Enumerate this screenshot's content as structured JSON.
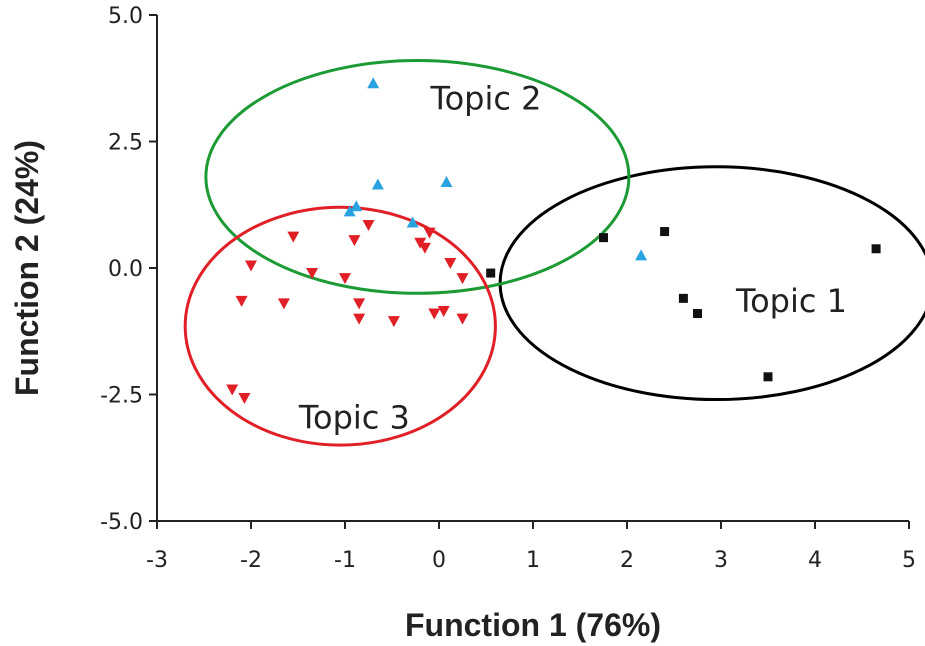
{
  "chart_data": {
    "type": "scatter",
    "xlabel": "Function 1 (76%)",
    "ylabel": "Function 2 (24%)",
    "xlim": [
      -3,
      5
    ],
    "ylim": [
      -5,
      5
    ],
    "xticks": [
      "-3",
      "-2",
      "-1",
      "0",
      "1",
      "2",
      "3",
      "4",
      "5"
    ],
    "yticks": [
      "-5.0",
      "-2.5",
      "0.0",
      "2.5",
      "5.0"
    ],
    "grid": false,
    "series": [
      {
        "name": "Topic 1",
        "marker": "square",
        "color": "#111111",
        "points": [
          [
            0.55,
            -0.1
          ],
          [
            1.75,
            0.6
          ],
          [
            2.4,
            0.72
          ],
          [
            2.6,
            -0.6
          ],
          [
            2.75,
            -0.9
          ],
          [
            3.5,
            -2.15
          ],
          [
            4.65,
            0.38
          ]
        ],
        "ellipse": {
          "center": [
            2.95,
            -0.3
          ],
          "rx": 2.3,
          "ry": 2.3,
          "color": "#000000"
        }
      },
      {
        "name": "Topic 2",
        "marker": "triangle-up",
        "color": "#29a3e0",
        "points": [
          [
            -0.7,
            3.65
          ],
          [
            -0.65,
            1.65
          ],
          [
            0.08,
            1.7
          ],
          [
            -0.95,
            1.12
          ],
          [
            -0.88,
            1.22
          ],
          [
            -0.28,
            0.9
          ],
          [
            2.15,
            0.25
          ]
        ],
        "ellipse": {
          "center": [
            -0.23,
            1.8
          ],
          "rx": 2.25,
          "ry": 2.3,
          "color": "#1c9a34"
        }
      },
      {
        "name": "Topic 3",
        "marker": "triangle-down",
        "color": "#e01f26",
        "points": [
          [
            -1.55,
            0.62
          ],
          [
            -0.75,
            0.85
          ],
          [
            -0.9,
            0.55
          ],
          [
            -0.2,
            0.5
          ],
          [
            -0.1,
            0.7
          ],
          [
            -2.0,
            0.05
          ],
          [
            -1.35,
            -0.1
          ],
          [
            -0.15,
            0.4
          ],
          [
            0.12,
            0.1
          ],
          [
            0.25,
            -0.2
          ],
          [
            -2.1,
            -0.65
          ],
          [
            -1.65,
            -0.7
          ],
          [
            -1.0,
            -0.2
          ],
          [
            -0.85,
            -0.7
          ],
          [
            -0.85,
            -1.0
          ],
          [
            -0.48,
            -1.05
          ],
          [
            -0.05,
            -0.9
          ],
          [
            0.05,
            -0.85
          ],
          [
            0.25,
            -1.0
          ],
          [
            -2.2,
            -2.4
          ],
          [
            -2.07,
            -2.57
          ]
        ],
        "ellipse": {
          "center": [
            -1.05,
            -1.15
          ],
          "rx": 1.65,
          "ry": 2.35,
          "color": "#e01f26"
        }
      }
    ],
    "annotations": [
      {
        "text": "Topic 1",
        "x": 3.75,
        "y": -0.65
      },
      {
        "text": "Topic 2",
        "x": 0.5,
        "y": 3.35
      },
      {
        "text": "Topic 3",
        "x": -0.9,
        "y": -2.95
      }
    ]
  }
}
